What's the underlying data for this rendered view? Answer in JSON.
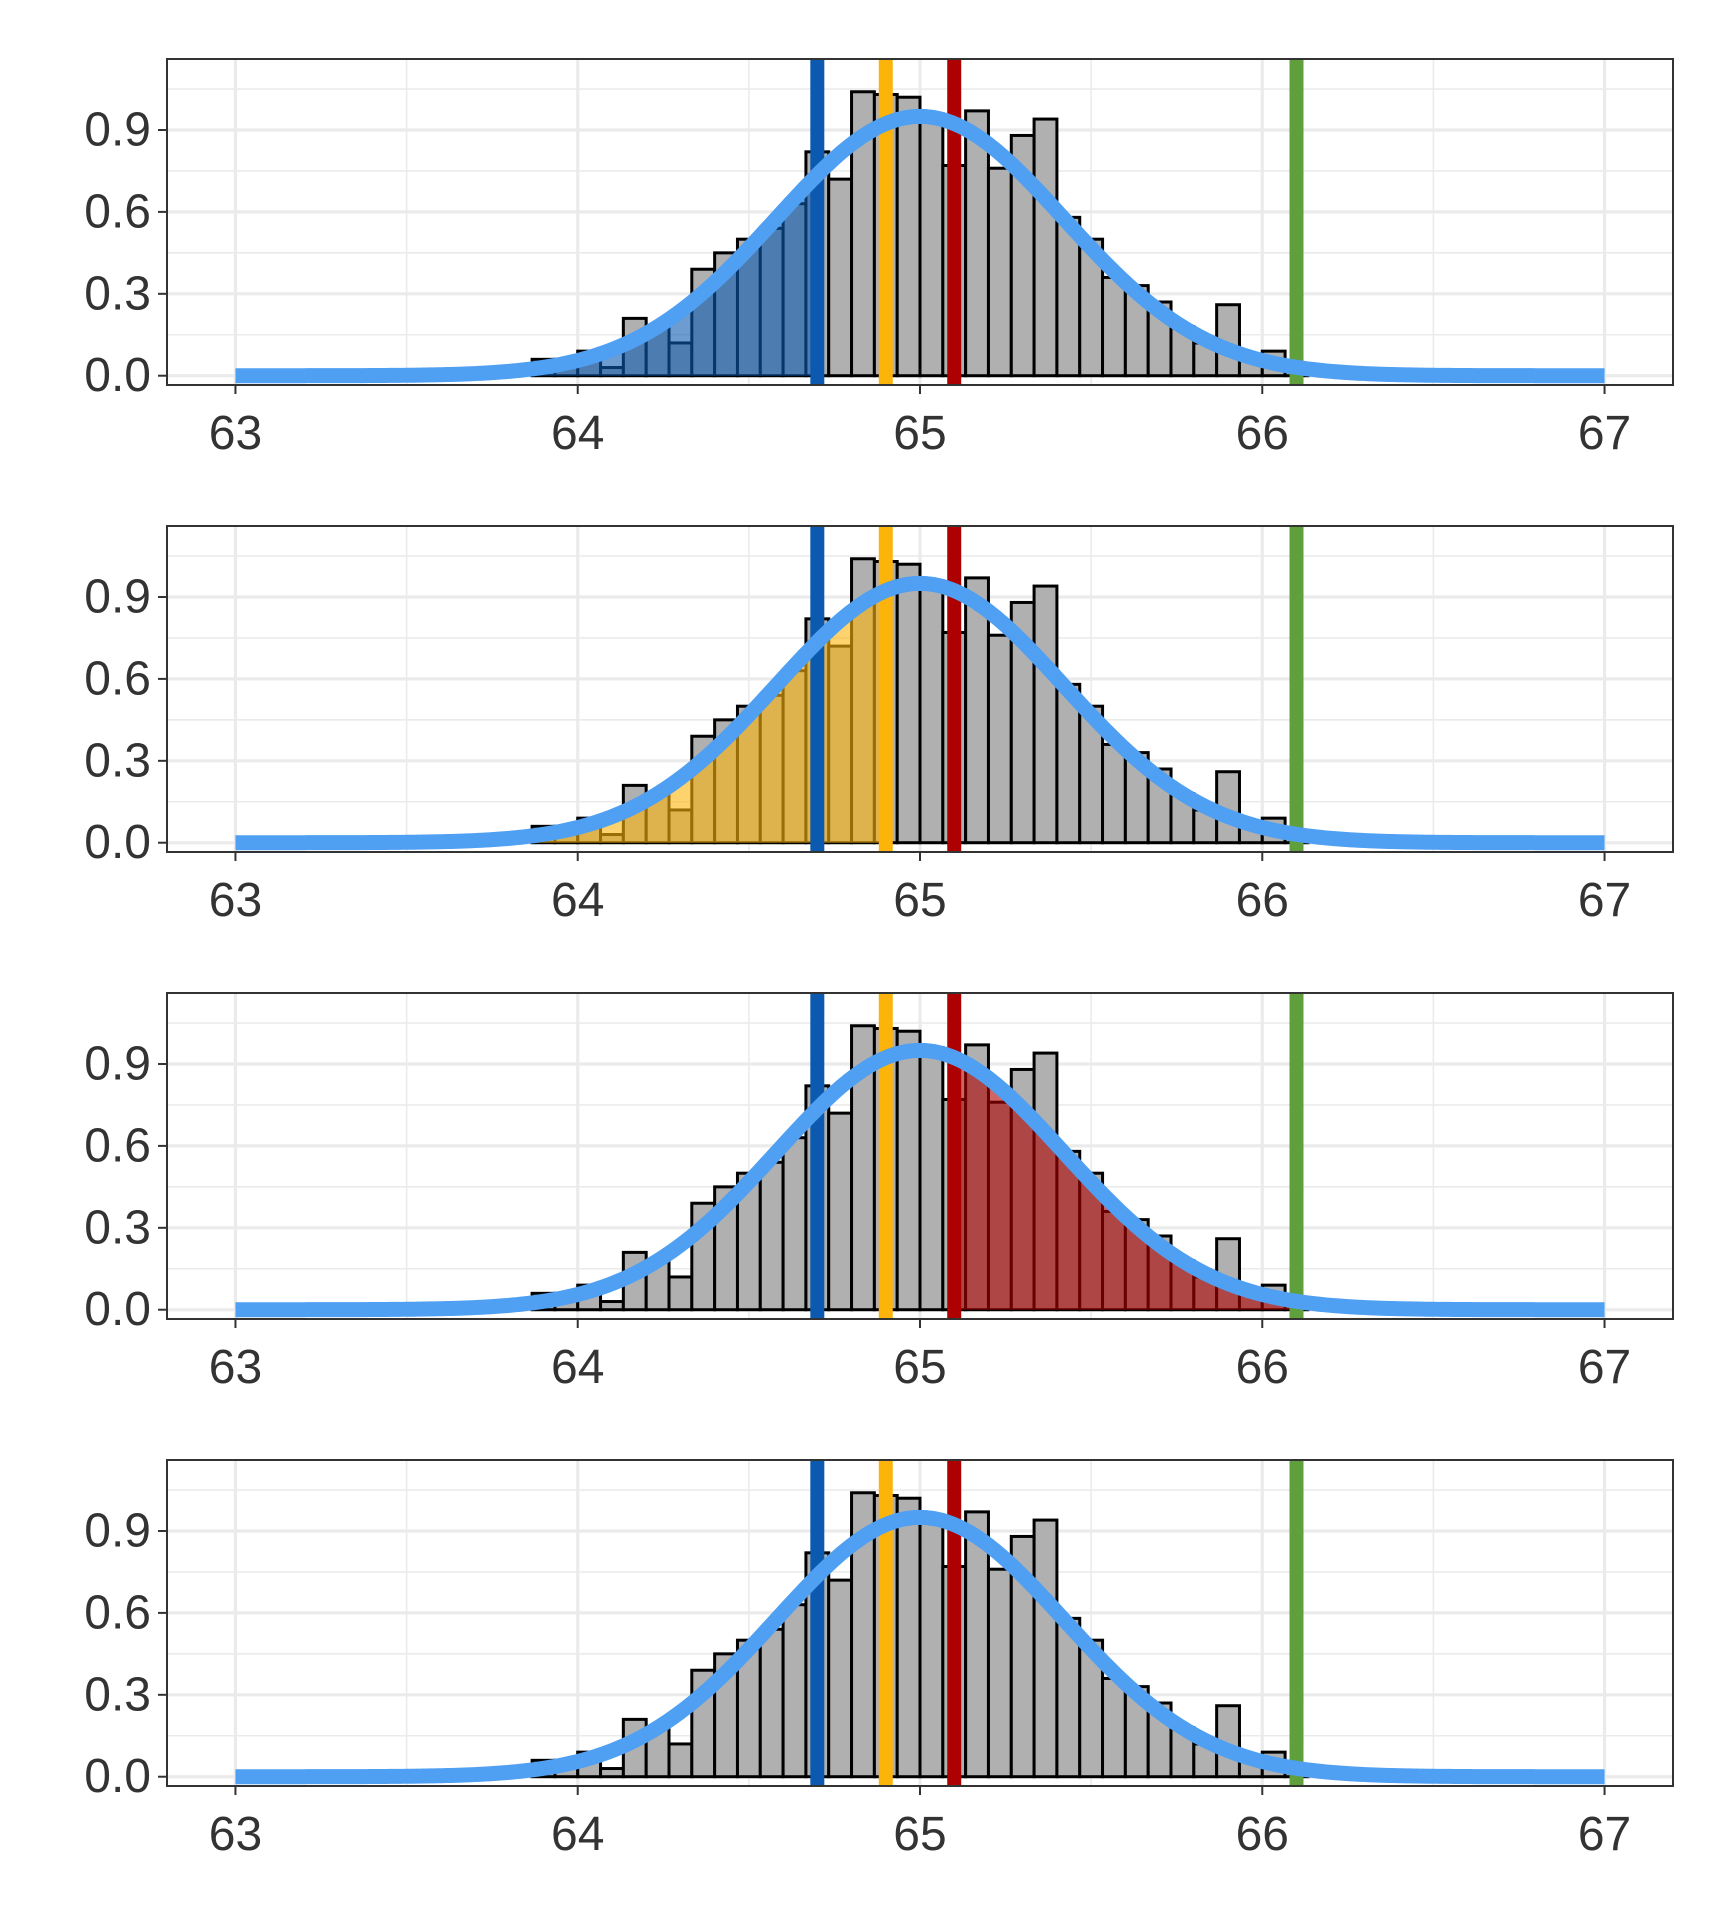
{
  "chart_data": {
    "type": "bar",
    "layout": "four stacked panels sharing the same histogram, density curve and reference lines",
    "x_axis": {
      "lim": [
        62.8,
        67.2
      ],
      "ticks": [
        63,
        64,
        65,
        66,
        67
      ],
      "tick_labels": [
        "63",
        "64",
        "65",
        "66",
        "67"
      ]
    },
    "y_axis": {
      "lim": [
        -0.034,
        1.16
      ],
      "ticks": [
        0.0,
        0.3,
        0.6,
        0.9
      ],
      "tick_labels": [
        "0.0",
        "0.3",
        "0.6",
        "0.9"
      ]
    },
    "grid": true,
    "histogram": {
      "bin_width": 0.0667,
      "bin_starts": [
        63.8667,
        63.9333,
        64.0,
        64.0667,
        64.1333,
        64.2,
        64.2667,
        64.3333,
        64.4,
        64.4667,
        64.5333,
        64.6,
        64.6667,
        64.7333,
        64.8,
        64.8667,
        64.9333,
        65.0,
        65.0667,
        65.1333,
        65.2,
        65.2667,
        65.3333,
        65.4,
        65.4667,
        65.5333,
        65.6,
        65.6667,
        65.7333,
        65.8,
        65.8667,
        65.9333,
        66.0,
        66.0667
      ],
      "values": [
        0.06,
        0.06,
        0.09,
        0.03,
        0.21,
        0.18,
        0.12,
        0.39,
        0.45,
        0.5,
        0.54,
        0.63,
        0.82,
        0.72,
        1.04,
        1.03,
        1.02,
        0.96,
        0.77,
        0.97,
        0.76,
        0.88,
        0.94,
        0.58,
        0.5,
        0.36,
        0.33,
        0.27,
        0.18,
        0.12,
        0.26,
        0.06,
        0.09,
        0.03
      ],
      "fill": "#b0b0b0",
      "stroke": "#000000"
    },
    "density_curve": {
      "type": "normal",
      "mean": 65.0,
      "sd": 0.42,
      "x_range": [
        63,
        67
      ],
      "color": "#4f9ff2"
    },
    "reference_lines": [
      {
        "x": 64.7,
        "color": "#0c5ab0"
      },
      {
        "x": 64.9,
        "color": "#fdb40a"
      },
      {
        "x": 65.1,
        "color": "#ad0000"
      },
      {
        "x": 66.1,
        "color": "#5fa03c"
      }
    ],
    "panels": [
      {
        "shade_from": 63.0,
        "shade_to": 64.7,
        "shade_color": "#0c5ab0"
      },
      {
        "shade_from": 63.0,
        "shade_to": 64.9,
        "shade_color": "#fdb40a"
      },
      {
        "shade_from": 65.1,
        "shade_to": 67.0,
        "shade_color": "#ad0000"
      },
      {
        "shade_from": null,
        "shade_to": null,
        "shade_color": null
      }
    ]
  }
}
